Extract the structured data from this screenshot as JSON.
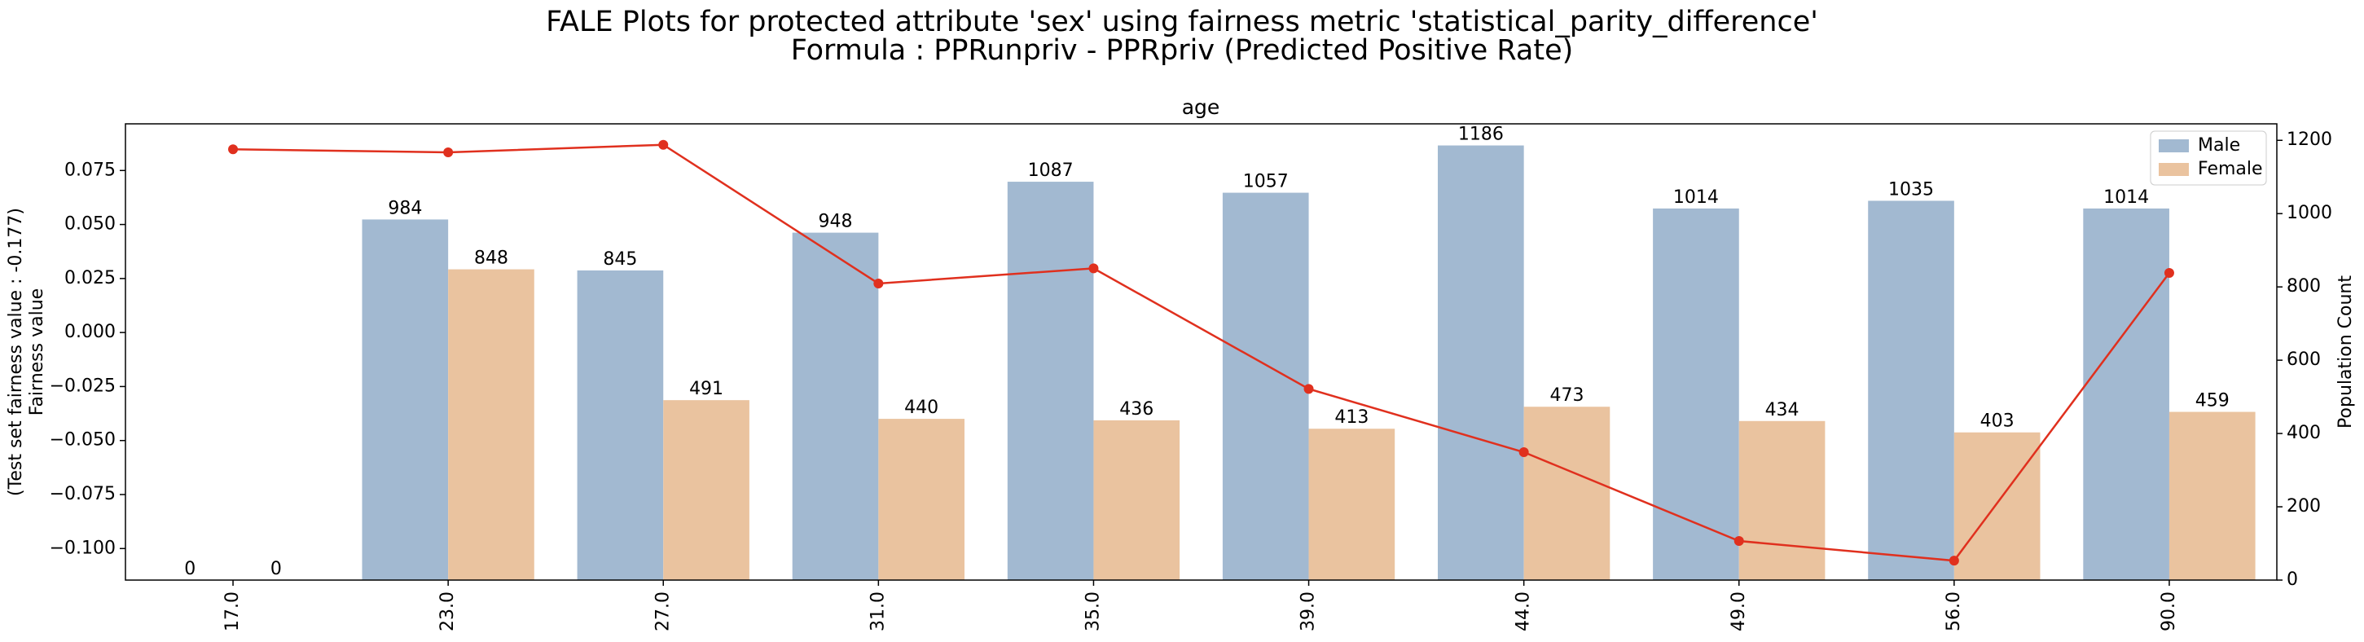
{
  "chart_data": {
    "type": "bar",
    "title": "FALE Plots for protected attribute 'sex' using fairness metric 'statistical_parity_difference'",
    "subtitle": "Formula : PPRunpriv - PPRpriv (Predicted Positive Rate)",
    "axis_title": "age",
    "ylabel": "Fairness value",
    "ylabel_note": "(Test set fairness value : -0.177)",
    "y2label": "Population Count",
    "categories": [
      "17.0",
      "23.0",
      "27.0",
      "31.0",
      "35.0",
      "39.0",
      "44.0",
      "49.0",
      "56.0",
      "90.0"
    ],
    "ylim": [
      -0.1146,
      0.0966
    ],
    "yticks": [
      {
        "value": 0.075,
        "label": "0.075"
      },
      {
        "value": 0.05,
        "label": "0.050"
      },
      {
        "value": 0.025,
        "label": "0.025"
      },
      {
        "value": 0,
        "label": "0.000"
      },
      {
        "value": -0.025,
        "label": "−0.025"
      },
      {
        "value": -0.05,
        "label": "−0.050"
      },
      {
        "value": -0.075,
        "label": "−0.075"
      },
      {
        "value": -0.1,
        "label": "−0.100"
      }
    ],
    "y2lim": [
      0,
      1245
    ],
    "y2ticks": [
      0,
      200,
      400,
      600,
      800,
      1000,
      1200
    ],
    "legend": "upper right",
    "series": [
      {
        "name": "Male",
        "type": "bar",
        "axis": "y2",
        "color": "#a2b9d1",
        "values": [
          0,
          984,
          845,
          948,
          1087,
          1057,
          1186,
          1014,
          1035,
          1014
        ]
      },
      {
        "name": "Female",
        "type": "bar",
        "axis": "y2",
        "color": "#eac39f",
        "values": [
          0,
          848,
          491,
          440,
          436,
          413,
          473,
          434,
          403,
          459
        ]
      }
    ],
    "line": {
      "type": "line",
      "color": "#e0301e",
      "values": [
        0.0848,
        0.0834,
        0.0869,
        0.0227,
        0.0297,
        -0.0261,
        -0.0554,
        -0.0965,
        -0.1056,
        0.0276
      ]
    }
  }
}
